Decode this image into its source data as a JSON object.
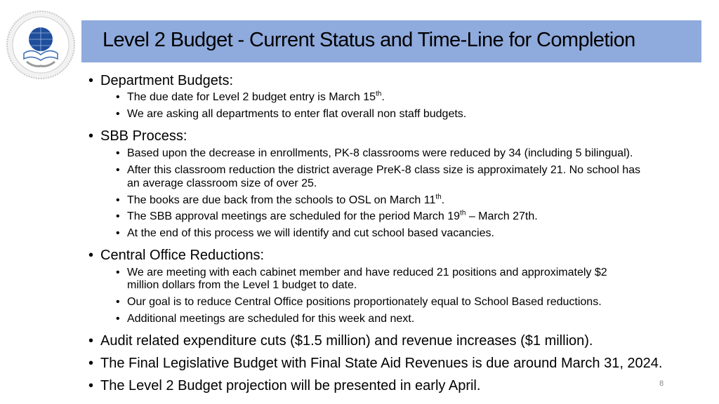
{
  "logo": {
    "top_text": "BUFFALO PUBLIC SCHOOLS",
    "bottom_text": "responsive relevant rewarding"
  },
  "title": "Level 2 Budget - Current Status and Time-Line for Completion",
  "bullets": {
    "dept": "Department Budgets:",
    "dept_1a": "The due date for Level 2 budget entry is March 15",
    "dept_1sup": "th",
    "dept_1b": ".",
    "dept_2": "We are asking all departments to enter flat overall non staff budgets.",
    "sbb": "SBB Process:",
    "sbb_1": "Based upon the decrease in enrollments, PK-8 classrooms were reduced by 34 (including 5 bilingual).",
    "sbb_2a": "After this classroom reduction the district average PreK-8 class size is approximately 21. No school has",
    "sbb_2b": "an average classroom size of over 25.",
    "sbb_3a": "The books are due back from the schools to OSL on March 11",
    "sbb_3sup": "th",
    "sbb_3b": ".",
    "sbb_4a": "The SBB approval meetings are scheduled for the period March 19",
    "sbb_4sup": "th",
    "sbb_4b": " – March 27th.",
    "sbb_5": "At the end of this process we will identify and cut school based vacancies.",
    "co": "Central Office Reductions:",
    "co_1a": "We are meeting with each cabinet member and have reduced 21 positions and approximately $2",
    "co_1b": "million dollars from the Level 1 budget to date.",
    "co_2": "Our goal is to reduce Central Office positions proportionately equal to School Based reductions.",
    "co_3": "Additional meetings are scheduled for this week and next.",
    "audit": "Audit related expenditure cuts ($1.5 million) and revenue increases ($1 million).",
    "final": "The Final Legislative Budget with Final State Aid Revenues is due around March 31, 2024.",
    "proj": "The Level 2 Budget projection will be presented in early April."
  },
  "bullet_char": "•",
  "page_number": "8",
  "colors": {
    "title_bar": "#8faadc"
  }
}
